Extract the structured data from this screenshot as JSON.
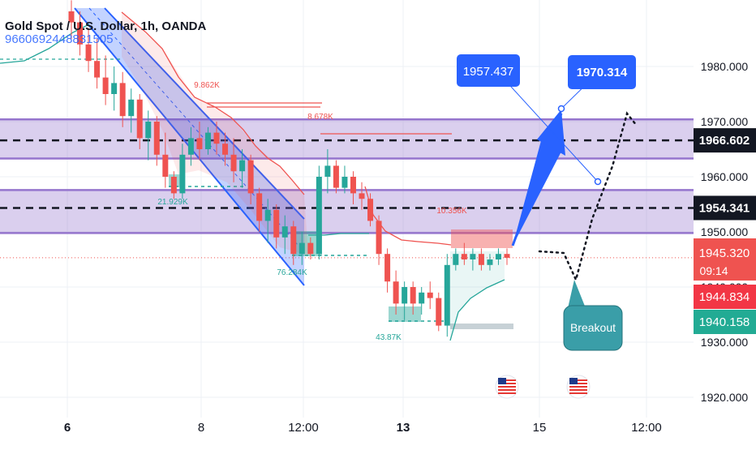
{
  "header": {
    "symbol_title": "Gold Spot / U.S. Dollar, 1h, OANDA",
    "indicator_value": "9660692448831505"
  },
  "colors": {
    "up": "#26a69a",
    "down": "#ef5350",
    "band": "#9575cd",
    "channel": "#2962ff",
    "label_blue": "#2962ff",
    "breakout": "#3a9ea8"
  },
  "chart_data": {
    "type": "candlestick",
    "title": "Gold Spot / U.S. Dollar, 1h, OANDA",
    "y_axis": {
      "ticks": [
        1920,
        1930,
        1940,
        1950,
        1960,
        1970,
        1980
      ],
      "tick_labels": [
        "1920.000",
        "1930.000",
        "1940.000",
        "1950.000",
        "1960.000",
        "1970.000",
        "1980.000"
      ],
      "range": [
        1910.7,
        1989
      ]
    },
    "x_axis": {
      "tick_labels": [
        "6",
        "8",
        "12:00",
        "13",
        "15",
        "12:00"
      ]
    },
    "candles": [
      [
        1990,
        1992,
        1985,
        1988
      ],
      [
        1988,
        1990,
        1982,
        1984
      ],
      [
        1984,
        1987,
        1979,
        1981
      ],
      [
        1981,
        1985,
        1976,
        1978
      ],
      [
        1978,
        1982,
        1973,
        1975
      ],
      [
        1975,
        1980,
        1972,
        1977
      ],
      [
        1977,
        1979,
        1969,
        1971
      ],
      [
        1971,
        1976,
        1968,
        1974
      ],
      [
        1974,
        1975,
        1965,
        1967
      ],
      [
        1967,
        1972,
        1963,
        1970
      ],
      [
        1970,
        1971,
        1962,
        1964
      ],
      [
        1964,
        1968,
        1958,
        1960
      ],
      [
        1960,
        1961,
        1956,
        1957
      ],
      [
        1957,
        1966,
        1956,
        1964
      ],
      [
        1964,
        1969,
        1962,
        1967
      ],
      [
        1967,
        1970,
        1963,
        1965
      ],
      [
        1965,
        1969,
        1964,
        1968
      ],
      [
        1968,
        1970,
        1964,
        1966
      ],
      [
        1966,
        1968,
        1962,
        1964
      ],
      [
        1964,
        1967,
        1959,
        1961
      ],
      [
        1961,
        1965,
        1958,
        1963
      ],
      [
        1963,
        1964,
        1955,
        1957
      ],
      [
        1957,
        1958,
        1950,
        1952
      ],
      [
        1952,
        1956,
        1948,
        1954
      ],
      [
        1954,
        1955,
        1947,
        1949
      ],
      [
        1949,
        1953,
        1946,
        1951
      ],
      [
        1951,
        1952,
        1944,
        1946
      ],
      [
        1946,
        1950,
        1944,
        1948
      ],
      [
        1948,
        1949,
        1945,
        1946
      ],
      [
        1946,
        1962,
        1945,
        1960
      ],
      [
        1960,
        1965,
        1957,
        1962
      ],
      [
        1962,
        1963,
        1957,
        1958
      ],
      [
        1958,
        1962,
        1957,
        1960
      ],
      [
        1960,
        1961,
        1955,
        1957
      ],
      [
        1957,
        1959,
        1954,
        1956
      ],
      [
        1956,
        1957,
        1951,
        1952
      ],
      [
        1952,
        1953,
        1944,
        1946
      ],
      [
        1946,
        1947,
        1939,
        1941
      ],
      [
        1941,
        1943,
        1935,
        1937
      ],
      [
        1937,
        1941,
        1934,
        1940
      ],
      [
        1940,
        1941,
        1935,
        1937
      ],
      [
        1937,
        1940,
        1935,
        1939
      ],
      [
        1939,
        1941,
        1936,
        1938
      ],
      [
        1938,
        1939,
        1932,
        1933
      ],
      [
        1933,
        1946,
        1931,
        1944
      ],
      [
        1944,
        1947,
        1943,
        1946
      ],
      [
        1946,
        1948,
        1944,
        1945
      ],
      [
        1945,
        1947,
        1943,
        1946
      ],
      [
        1946,
        1947,
        1943,
        1944
      ],
      [
        1944,
        1946,
        1943,
        1945
      ],
      [
        1945,
        1947,
        1944,
        1946
      ],
      [
        1946,
        1947,
        1944,
        1945.3
      ]
    ],
    "volume_profile_labels": [
      "9.862K",
      "8.678K",
      "21.929K",
      "10.356K",
      "76.284K",
      "43.87K"
    ],
    "horizontal_levels": [
      1966.602,
      1954.341
    ],
    "bands": [
      [
        1963.3,
        1970.4
      ],
      [
        1949.8,
        1957.6
      ]
    ],
    "price_labels": {
      "last": "1945.320",
      "countdown": "09:14",
      "bid": "1944.834",
      "ask": "1940.158",
      "level_high": "1966.602",
      "level_low": "1954.341"
    },
    "annotations": {
      "target_1": "1957.437",
      "target_2": "1970.314",
      "breakout": "Breakout"
    },
    "grid": true
  }
}
